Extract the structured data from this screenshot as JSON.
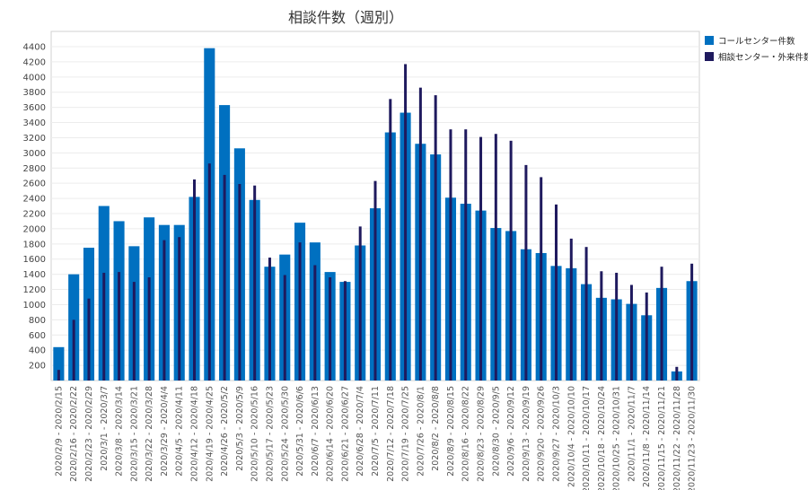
{
  "chart_data": {
    "type": "bar",
    "title": "相談件数（週別）",
    "xlabel": "",
    "ylabel": "",
    "ylim": [
      0,
      4400
    ],
    "yticks": [
      200,
      400,
      600,
      800,
      1000,
      1200,
      1400,
      1600,
      1800,
      2000,
      2200,
      2400,
      2600,
      2800,
      3000,
      3200,
      3400,
      3600,
      3800,
      4000,
      4200,
      4400
    ],
    "grid": true,
    "legend_position": "top-right",
    "categories": [
      "2020/2/9 - 2020/2/15",
      "2020/2/16 - 2020/2/22",
      "2020/2/23 - 2020/2/29",
      "2020/3/1 - 2020/3/7",
      "2020/3/8 - 2020/3/14",
      "2020/3/15 - 2020/3/21",
      "2020/3/22 - 2020/3/28",
      "2020/3/29 - 2020/4/4",
      "2020/4/5 - 2020/4/11",
      "2020/4/12 - 2020/4/18",
      "2020/4/19 - 2020/4/25",
      "2020/4/26 - 2020/5/2",
      "2020/5/3 - 2020/5/9",
      "2020/5/10 - 2020/5/16",
      "2020/5/17 - 2020/5/23",
      "2020/5/24 - 2020/5/30",
      "2020/5/31 - 2020/6/6",
      "2020/6/7 - 2020/6/13",
      "2020/6/14 - 2020/6/20",
      "2020/6/21 - 2020/6/27",
      "2020/6/28 - 2020/7/4",
      "2020/7/5 - 2020/7/11",
      "2020/7/12 - 2020/7/18",
      "2020/7/19 - 2020/7/25",
      "2020/7/26 - 2020/8/1",
      "2020/8/2 - 2020/8/8",
      "2020/8/9 - 2020/8/15",
      "2020/8/16 - 2020/8/22",
      "2020/8/23 - 2020/8/29",
      "2020/8/30 - 2020/9/5",
      "2020/9/6 - 2020/9/12",
      "2020/9/13 - 2020/9/19",
      "2020/9/20 - 2020/9/26",
      "2020/9/27 - 2020/10/3",
      "2020/10/4 - 2020/10/10",
      "2020/10/11 - 2020/10/17",
      "2020/10/18 - 2020/10/24",
      "2020/10/25 - 2020/10/31",
      "2020/11/1 - 2020/11/7",
      "2020/11/8 - 2020/11/14",
      "2020/11/15 - 2020/11/21",
      "2020/11/22 - 2020/11/28",
      "2020/11/23 - 2020/11/30"
    ],
    "series": [
      {
        "name": "コールセンター件数",
        "color": "#0070c0",
        "values": [
          440,
          1400,
          1750,
          2300,
          2100,
          1770,
          2150,
          2050,
          2050,
          2420,
          4380,
          3630,
          3060,
          2380,
          1500,
          1660,
          2080,
          1820,
          1430,
          1300,
          1780,
          2270,
          3270,
          3530,
          3120,
          2980,
          2410,
          2330,
          2240,
          2010,
          1970,
          1730,
          1680,
          1510,
          1480,
          1270,
          1090,
          1070,
          1010,
          860,
          1220,
          120,
          1310
        ]
      },
      {
        "name": "相談センター・外来件数",
        "color": "#1f1a5e",
        "values": [
          140,
          800,
          1080,
          1420,
          1430,
          1300,
          1360,
          1850,
          1890,
          2650,
          2860,
          2710,
          2590,
          2570,
          1620,
          1390,
          1820,
          1520,
          1360,
          1310,
          2030,
          2630,
          3710,
          4170,
          3860,
          3760,
          3310,
          3310,
          3210,
          3250,
          3160,
          2840,
          2680,
          2320,
          1870,
          1760,
          1440,
          1420,
          1260,
          1160,
          1500,
          180,
          1540
        ]
      }
    ]
  }
}
